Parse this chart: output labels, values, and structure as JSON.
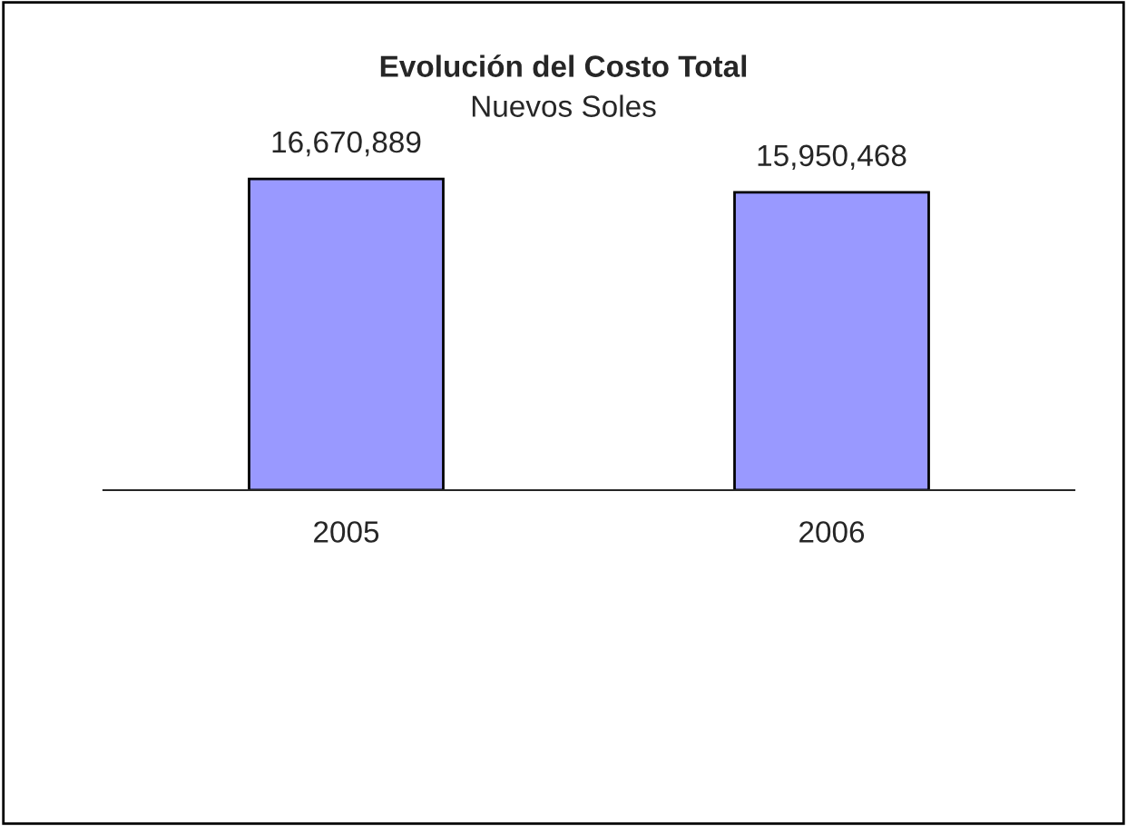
{
  "chart_data": {
    "type": "bar",
    "title": "Evolución del Costo Total",
    "subtitle": "Nuevos Soles",
    "categories": [
      "2005",
      "2006"
    ],
    "values": [
      16670889,
      15950468
    ],
    "color": "#9999ff",
    "value_labels": [
      "16,670,889",
      "15,950,468"
    ],
    "grid": false,
    "legend": false
  }
}
